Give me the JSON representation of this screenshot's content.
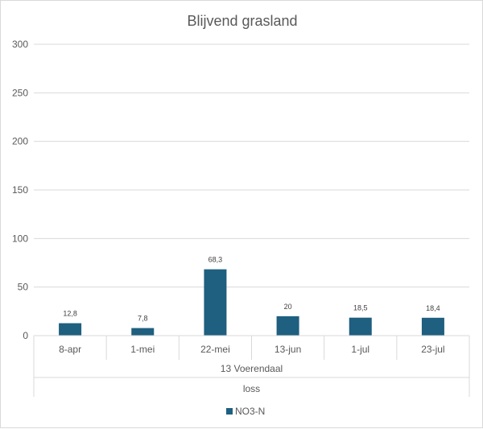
{
  "chart_data": {
    "type": "bar",
    "title": "Blijvend grasland",
    "categories": [
      "8-apr",
      "1-mei",
      "22-mei",
      "13-jun",
      "1-jul",
      "23-jul"
    ],
    "group_labels": [
      "13 Voerendaal",
      "loss"
    ],
    "series": [
      {
        "name": "NO3-N",
        "values": [
          12.8,
          7.8,
          68.3,
          20,
          18.5,
          18.4
        ],
        "value_labels": [
          "12,8",
          "7,8",
          "68,3",
          "20",
          "18,5",
          "18,4"
        ],
        "color": "#1f5f7f"
      }
    ],
    "ylim": [
      0,
      300
    ],
    "yticks": [
      "0",
      "50",
      "100",
      "150",
      "200",
      "250",
      "300"
    ],
    "grid": true,
    "legend_position": "bottom"
  }
}
